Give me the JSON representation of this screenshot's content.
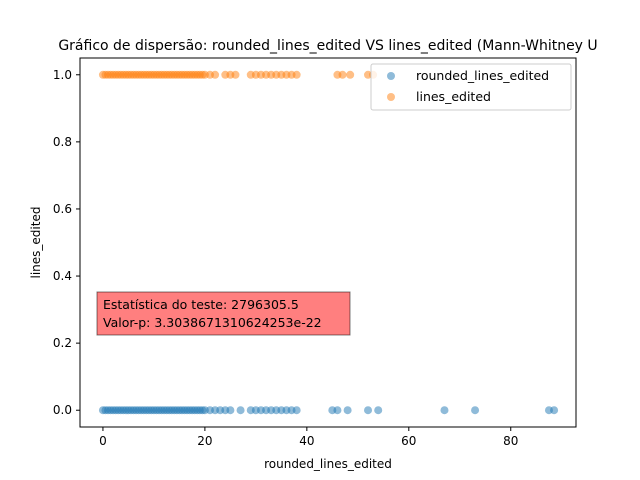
{
  "chart_data": {
    "type": "scatter",
    "title": "Gráfico de dispersão: rounded_lines_edited VS lines_edited (Mann-Whitney U",
    "xlabel": "rounded_lines_edited",
    "ylabel": "lines_edited",
    "xlim": [
      -4.5,
      92.8
    ],
    "ylim": [
      -0.05,
      1.05
    ],
    "xticks": [
      "0",
      "20",
      "40",
      "60",
      "80"
    ],
    "yticks": [
      "0.0",
      "0.2",
      "0.4",
      "0.6",
      "0.8",
      "1.0"
    ],
    "grid": false,
    "legend_position": "upper right",
    "annotation": {
      "line1": "Estatística do teste: 2796305.5",
      "line2": "Valor-p: 3.3038671310624253e-22",
      "background": "#ff0000"
    },
    "series": [
      {
        "name": "rounded_lines_edited",
        "color": "#1f77b4",
        "y": 0,
        "x": [
          0,
          0.5,
          1,
          1.5,
          2,
          2.5,
          3,
          3.5,
          4,
          4.5,
          5,
          5.5,
          6,
          6.5,
          7,
          7.5,
          8,
          8.5,
          9,
          9.5,
          10,
          10.5,
          11,
          11.5,
          12,
          12.5,
          13,
          13.5,
          14,
          14.5,
          15,
          15.5,
          16,
          16.5,
          17,
          17.5,
          18,
          18.5,
          19,
          19.5,
          20,
          21,
          22,
          23,
          24,
          25,
          27,
          29,
          30,
          31,
          32,
          33,
          34,
          35,
          36,
          37,
          38,
          45,
          46,
          48,
          52,
          54,
          67,
          73,
          87.5,
          88.5
        ]
      },
      {
        "name": "lines_edited",
        "color": "#ff7f0e",
        "y": 1,
        "x": [
          0,
          0.5,
          1,
          1.5,
          2,
          2.5,
          3,
          3.5,
          4,
          4.5,
          5,
          5.5,
          6,
          6.5,
          7,
          7.5,
          8,
          8.5,
          9,
          9.5,
          10,
          10.5,
          11,
          11.5,
          12,
          12.5,
          13,
          13.5,
          14,
          14.5,
          15,
          15.5,
          16,
          16.5,
          17,
          17.5,
          18,
          18.5,
          19,
          19.5,
          20,
          21,
          22,
          24,
          25,
          26,
          29,
          30,
          31,
          32,
          33,
          34,
          35,
          36,
          37,
          38,
          46,
          47,
          48.5,
          52,
          53
        ]
      }
    ]
  }
}
